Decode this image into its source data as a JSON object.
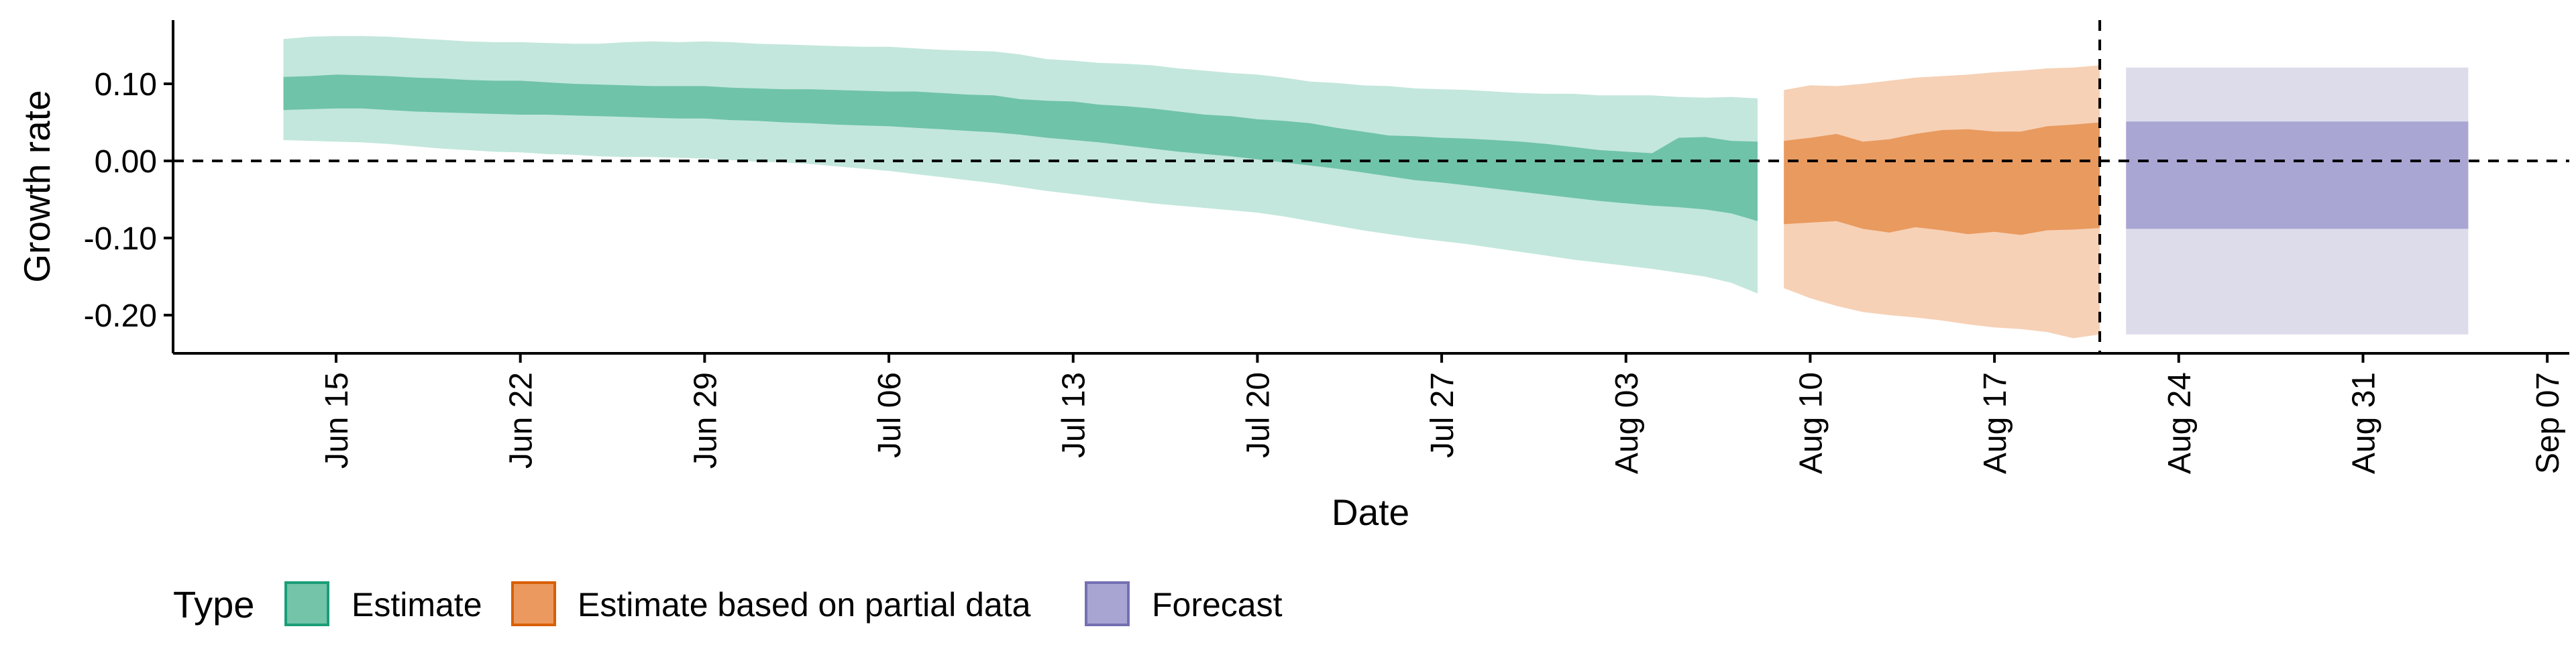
{
  "chart_data": {
    "type": "area",
    "title": "",
    "xlabel": "Date",
    "ylabel": "Growth rate",
    "x_axis": {
      "type": "date",
      "range": [
        "2020-06-07",
        "2020-09-07"
      ],
      "tick_dates": [
        "2020-06-15",
        "2020-06-22",
        "2020-06-29",
        "2020-07-06",
        "2020-07-13",
        "2020-07-20",
        "2020-07-27",
        "2020-08-03",
        "2020-08-10",
        "2020-08-17",
        "2020-08-24",
        "2020-08-31",
        "2020-09-07"
      ],
      "tick_labels": [
        "Jun 15",
        "Jun 22",
        "Jun 29",
        "Jul 06",
        "Jul 13",
        "Jul 20",
        "Jul 27",
        "Aug 03",
        "Aug 10",
        "Aug 17",
        "Aug 24",
        "Aug 31",
        "Sep 07"
      ]
    },
    "y_axis": {
      "range": [
        -0.25,
        0.18
      ],
      "ticks": [
        0.1,
        0.0,
        -0.1,
        -0.2
      ],
      "tick_labels": [
        "0.10",
        "0.00",
        "-0.10",
        "-0.20"
      ]
    },
    "reference_lines": [
      {
        "orientation": "horizontal",
        "value": 0.0,
        "style": "dashed"
      },
      {
        "orientation": "vertical",
        "value": "2020-08-21",
        "style": "dashed"
      }
    ],
    "grid": false,
    "legend": {
      "title": "Type",
      "position": "bottom-left",
      "entries": [
        {
          "label": "Estimate",
          "color": "#66c2a5",
          "fill": "#73c4a9",
          "border": "#1b9e77"
        },
        {
          "label": "Estimate based on partial data",
          "color": "#e8975f",
          "fill": "#eb995e",
          "border": "#d95f02"
        },
        {
          "label": "Forecast",
          "color": "#a8a4d3",
          "fill": "#a9a5d3",
          "border": "#7570b3"
        }
      ]
    },
    "series": [
      {
        "name": "Estimate",
        "outer_color": "#c3e7dc",
        "inner_color": "#6fc3a8",
        "x": [
          "2020-06-13",
          "2020-06-14",
          "2020-06-15",
          "2020-06-16",
          "2020-06-17",
          "2020-06-18",
          "2020-06-19",
          "2020-06-20",
          "2020-06-21",
          "2020-06-22",
          "2020-06-23",
          "2020-06-24",
          "2020-06-25",
          "2020-06-26",
          "2020-06-27",
          "2020-06-28",
          "2020-06-29",
          "2020-06-30",
          "2020-07-01",
          "2020-07-02",
          "2020-07-03",
          "2020-07-04",
          "2020-07-05",
          "2020-07-06",
          "2020-07-07",
          "2020-07-08",
          "2020-07-09",
          "2020-07-10",
          "2020-07-11",
          "2020-07-12",
          "2020-07-13",
          "2020-07-14",
          "2020-07-15",
          "2020-07-16",
          "2020-07-17",
          "2020-07-18",
          "2020-07-19",
          "2020-07-20",
          "2020-07-21",
          "2020-07-22",
          "2020-07-23",
          "2020-07-24",
          "2020-07-25",
          "2020-07-26",
          "2020-07-27",
          "2020-07-28",
          "2020-07-29",
          "2020-07-30",
          "2020-07-31",
          "2020-08-01",
          "2020-08-02",
          "2020-08-03",
          "2020-08-04",
          "2020-08-05",
          "2020-08-06",
          "2020-08-07",
          "2020-08-08"
        ],
        "upper_outer": [
          0.158,
          0.161,
          0.162,
          0.162,
          0.161,
          0.159,
          0.157,
          0.155,
          0.154,
          0.154,
          0.153,
          0.152,
          0.152,
          0.154,
          0.155,
          0.154,
          0.155,
          0.154,
          0.152,
          0.151,
          0.15,
          0.149,
          0.148,
          0.148,
          0.146,
          0.144,
          0.143,
          0.142,
          0.138,
          0.132,
          0.13,
          0.127,
          0.126,
          0.124,
          0.12,
          0.117,
          0.114,
          0.112,
          0.108,
          0.103,
          0.101,
          0.098,
          0.097,
          0.094,
          0.093,
          0.092,
          0.09,
          0.088,
          0.087,
          0.087,
          0.085,
          0.085,
          0.085,
          0.083,
          0.082,
          0.083,
          0.081
        ],
        "upper_inner": [
          0.109,
          0.11,
          0.112,
          0.111,
          0.11,
          0.108,
          0.107,
          0.105,
          0.104,
          0.104,
          0.102,
          0.1,
          0.099,
          0.098,
          0.097,
          0.097,
          0.097,
          0.095,
          0.094,
          0.093,
          0.093,
          0.092,
          0.091,
          0.09,
          0.09,
          0.088,
          0.086,
          0.085,
          0.08,
          0.078,
          0.077,
          0.073,
          0.071,
          0.068,
          0.064,
          0.06,
          0.058,
          0.054,
          0.052,
          0.049,
          0.043,
          0.038,
          0.033,
          0.032,
          0.03,
          0.029,
          0.027,
          0.025,
          0.022,
          0.018,
          0.014,
          0.012,
          0.01,
          0.03,
          0.031,
          0.026,
          0.025
        ],
        "lower_inner": [
          0.066,
          0.067,
          0.068,
          0.068,
          0.066,
          0.064,
          0.063,
          0.062,
          0.061,
          0.06,
          0.06,
          0.059,
          0.058,
          0.057,
          0.056,
          0.055,
          0.055,
          0.053,
          0.052,
          0.05,
          0.049,
          0.047,
          0.046,
          0.045,
          0.043,
          0.041,
          0.039,
          0.037,
          0.034,
          0.03,
          0.027,
          0.024,
          0.02,
          0.016,
          0.012,
          0.009,
          0.006,
          0.002,
          -0.002,
          -0.006,
          -0.01,
          -0.015,
          -0.02,
          -0.025,
          -0.028,
          -0.032,
          -0.036,
          -0.04,
          -0.044,
          -0.048,
          -0.052,
          -0.055,
          -0.058,
          -0.06,
          -0.063,
          -0.068,
          -0.078
        ],
        "lower_outer": [
          0.027,
          0.026,
          0.025,
          0.024,
          0.022,
          0.019,
          0.016,
          0.014,
          0.012,
          0.011,
          0.009,
          0.008,
          0.006,
          0.005,
          0.005,
          0.004,
          0.003,
          0.001,
          -0.001,
          -0.002,
          -0.004,
          -0.007,
          -0.01,
          -0.013,
          -0.017,
          -0.021,
          -0.025,
          -0.029,
          -0.034,
          -0.039,
          -0.043,
          -0.047,
          -0.051,
          -0.055,
          -0.058,
          -0.061,
          -0.064,
          -0.067,
          -0.072,
          -0.078,
          -0.084,
          -0.09,
          -0.095,
          -0.1,
          -0.104,
          -0.108,
          -0.113,
          -0.118,
          -0.123,
          -0.128,
          -0.132,
          -0.136,
          -0.14,
          -0.145,
          -0.15,
          -0.158,
          -0.172
        ]
      },
      {
        "name": "Estimate based on partial data",
        "outer_color": "#f6d1b6",
        "inner_color": "#e99a5f",
        "x": [
          "2020-08-09",
          "2020-08-10",
          "2020-08-11",
          "2020-08-12",
          "2020-08-13",
          "2020-08-14",
          "2020-08-15",
          "2020-08-16",
          "2020-08-17",
          "2020-08-18",
          "2020-08-19",
          "2020-08-20",
          "2020-08-21"
        ],
        "upper_outer": [
          0.092,
          0.098,
          0.097,
          0.1,
          0.104,
          0.108,
          0.11,
          0.112,
          0.115,
          0.117,
          0.12,
          0.121,
          0.124
        ],
        "upper_inner": [
          0.026,
          0.03,
          0.035,
          0.025,
          0.028,
          0.035,
          0.04,
          0.041,
          0.038,
          0.038,
          0.045,
          0.047,
          0.05
        ],
        "lower_inner": [
          -0.082,
          -0.08,
          -0.078,
          -0.088,
          -0.093,
          -0.086,
          -0.09,
          -0.095,
          -0.092,
          -0.096,
          -0.09,
          -0.089,
          -0.087
        ],
        "lower_outer": [
          -0.165,
          -0.178,
          -0.188,
          -0.196,
          -0.2,
          -0.203,
          -0.207,
          -0.212,
          -0.216,
          -0.218,
          -0.222,
          -0.23,
          -0.225
        ]
      },
      {
        "name": "Forecast",
        "outer_color": "#dddceb",
        "inner_color": "#aaa6d3",
        "x": [
          "2020-08-22",
          "2020-09-04"
        ],
        "upper_outer": [
          0.121,
          0.121
        ],
        "upper_inner": [
          0.051,
          0.051
        ],
        "lower_inner": [
          -0.088,
          -0.088
        ],
        "lower_outer": [
          -0.225,
          -0.225
        ]
      }
    ]
  }
}
